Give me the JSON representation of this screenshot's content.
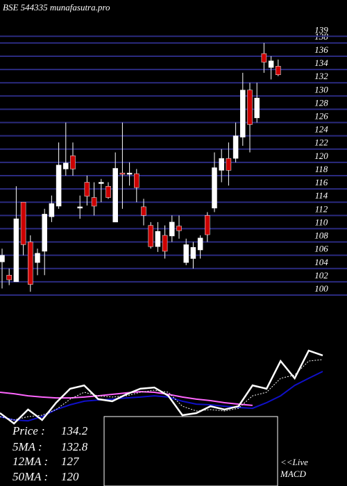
{
  "watermark": "BSE 544335 munafasutra.pro",
  "indicators": [
    {
      "label": "Price   :",
      "value": 134.2
    },
    {
      "label": "5MA :",
      "value": 132.8
    },
    {
      "label": "12MA :",
      "value": 127
    },
    {
      "label": "50MA :",
      "value": 120
    }
  ],
  "macd_label": [
    "<<Live",
    "MACD"
  ],
  "chart_data": [
    {
      "type": "candlestick",
      "up_color": "#ffffff",
      "down_color": "#cc0000",
      "grid_color": "#2b2b80",
      "grid": true,
      "ylim": [
        100,
        139
      ],
      "yticks": [
        100,
        102,
        104,
        106,
        108,
        110,
        112,
        114,
        116,
        118,
        120,
        122,
        124,
        126,
        128,
        130,
        132,
        134,
        136,
        138,
        139
      ],
      "open": [
        105,
        103,
        102,
        114,
        108,
        104.9,
        106.6,
        111.8,
        113.4,
        119,
        121,
        113.1,
        117,
        114.7,
        116.8,
        116.4,
        111,
        118.4,
        118.2,
        118.3,
        113.3,
        110.5,
        107.3,
        109,
        108.9,
        110.4,
        104.9,
        105.5,
        106.8,
        112,
        113.1,
        118.8,
        120.6,
        120.6,
        123.8,
        130.9,
        126.7,
        136.4,
        134.3,
        134.5
      ],
      "high": [
        107,
        104,
        116.4,
        114,
        109,
        107,
        113,
        115,
        123,
        126,
        123,
        115,
        118,
        117,
        117.5,
        117,
        121.5,
        126,
        120,
        119,
        114.5,
        111,
        111,
        110.5,
        112,
        112,
        108.5,
        108,
        109,
        112.5,
        121.5,
        122,
        123,
        126,
        133.5,
        132,
        132,
        138,
        136,
        135.5
      ],
      "low": [
        101,
        101.5,
        102,
        106,
        100.5,
        103,
        103,
        111,
        113,
        118,
        118,
        111.5,
        113.5,
        112,
        114,
        114.5,
        111,
        113,
        116.5,
        114,
        110.5,
        107,
        106.5,
        105.5,
        108,
        108.5,
        104.5,
        104,
        105.5,
        108,
        112.5,
        117,
        116.5,
        120,
        122.5,
        121.5,
        126,
        133.5,
        132.5,
        133
      ],
      "close": [
        106,
        102.3,
        111.5,
        107.6,
        101.6,
        106.3,
        112.2,
        113.8,
        119.6,
        119.9,
        119,
        113.3,
        114.9,
        113.4,
        117,
        114.7,
        119.1,
        118.2,
        118.4,
        116.2,
        112,
        107.3,
        109.6,
        106.6,
        111,
        109.7,
        107.6,
        107.2,
        108.6,
        109.1,
        119.2,
        120.6,
        118.8,
        124,
        130.9,
        125.7,
        129.7,
        135.1,
        135.3,
        133.2
      ]
    },
    {
      "type": "line",
      "ylim": [
        100,
        140
      ],
      "categories": [
        null,
        null,
        null,
        null,
        null,
        null,
        null,
        null,
        null,
        null,
        null,
        null,
        null,
        null,
        null,
        null,
        null,
        null,
        null,
        null,
        null,
        null,
        null,
        null
      ],
      "series": [
        {
          "color": "#ff66ff",
          "width": 2,
          "values": [
            115,
            114.3,
            113.3,
            112.7,
            112.3,
            112.3,
            112.7,
            113.3,
            114,
            114.7,
            115.3,
            115,
            114,
            112.7,
            111.7,
            111,
            110,
            109.3,
            108.7,
            null,
            null,
            null,
            null,
            null
          ]
        },
        {
          "color": "#1010c8",
          "width": 2,
          "values": [
            103.3,
            101.7,
            101.3,
            103.3,
            106.7,
            109,
            110.7,
            111.3,
            111.7,
            112.3,
            112.7,
            113.3,
            112.7,
            110.7,
            109.3,
            109,
            108.3,
            107.7,
            107.3,
            110,
            113.3,
            118.3,
            121.7,
            125
          ]
        },
        {
          "color": "#ffffff",
          "width": 1,
          "dash": true,
          "values": [
            103.3,
            101.7,
            103.3,
            104,
            106.7,
            111.7,
            115,
            113.3,
            112.7,
            113.3,
            115,
            116,
            115,
            108.3,
            106,
            106.7,
            106,
            107.3,
            113.3,
            115,
            121.7,
            123.3,
            130,
            130.7
          ]
        },
        {
          "color": "#ffffff",
          "width": 2.5,
          "values": [
            105,
            100,
            106.7,
            101.7,
            110,
            116.7,
            118.3,
            111.7,
            110.7,
            114,
            116.7,
            117.3,
            113.3,
            104,
            105,
            108.3,
            106.7,
            108.3,
            118.3,
            116.7,
            130,
            121.7,
            135,
            132.7
          ]
        }
      ]
    },
    {
      "type": "macd",
      "ylim": [
        -1,
        1
      ],
      "categories": [
        null,
        null,
        null,
        null,
        null,
        null,
        null,
        null,
        null,
        null,
        null,
        null
      ],
      "series": [
        {
          "color": "#cc0000",
          "values": [
            0,
            0,
            0,
            0,
            0,
            0,
            0,
            0,
            0,
            0,
            0,
            0
          ]
        },
        {
          "color": "#ffffff",
          "values": [
            0,
            0,
            0,
            -0.1,
            0,
            -0.05,
            0,
            0,
            0,
            -0.1,
            0.15,
            0.33
          ]
        }
      ]
    }
  ]
}
